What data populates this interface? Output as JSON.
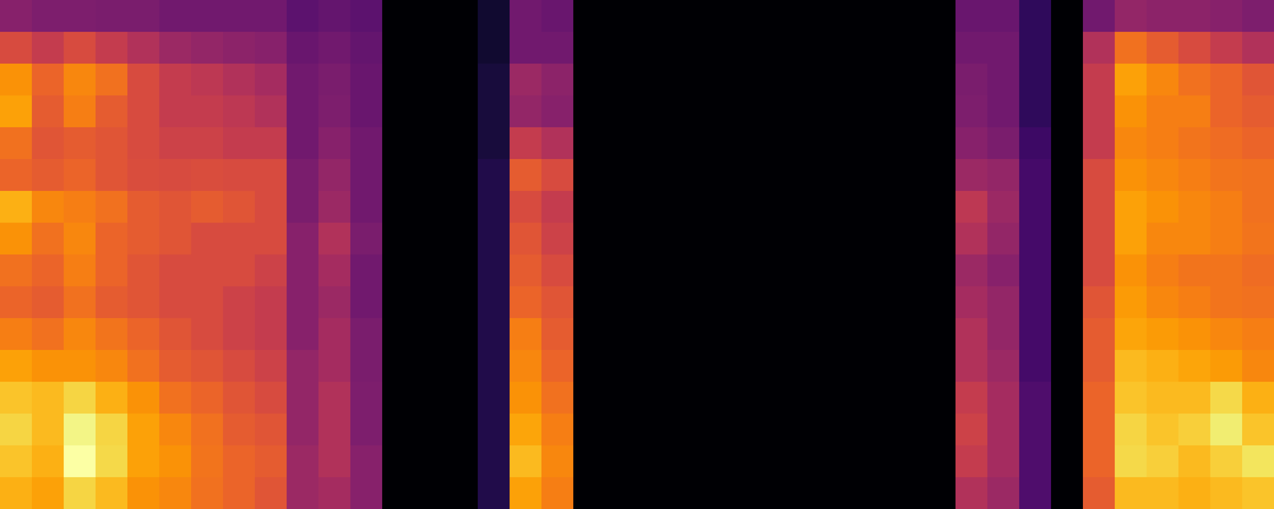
{
  "chart_data": {
    "type": "heatmap",
    "tick_labels": false,
    "cells": [
      [
        0.35,
        0.33,
        0.33,
        0.32,
        0.32,
        0.3,
        0.3,
        0.3,
        0.3,
        0.25,
        0.27,
        0.25,
        0,
        0,
        0,
        0.08,
        0.3,
        0.28,
        0,
        0,
        0,
        0,
        0,
        0,
        0,
        0,
        0,
        0,
        0,
        0,
        0.28,
        0.28,
        0.15,
        0,
        0.3,
        0.38,
        0.36,
        0.36,
        0.35,
        0.33
      ],
      [
        0.55,
        0.5,
        0.55,
        0.5,
        0.45,
        0.4,
        0.38,
        0.36,
        0.35,
        0.28,
        0.3,
        0.27,
        0,
        0,
        0,
        0.08,
        0.3,
        0.3,
        0,
        0,
        0,
        0,
        0,
        0,
        0,
        0,
        0,
        0,
        0,
        0,
        0.3,
        0.3,
        0.15,
        0,
        0.45,
        0.65,
        0.6,
        0.55,
        0.5,
        0.45
      ],
      [
        0.72,
        0.62,
        0.7,
        0.65,
        0.55,
        0.5,
        0.48,
        0.45,
        0.42,
        0.3,
        0.32,
        0.28,
        0,
        0,
        0,
        0.1,
        0.4,
        0.36,
        0,
        0,
        0,
        0,
        0,
        0,
        0,
        0,
        0,
        0,
        0,
        0,
        0.32,
        0.3,
        0.15,
        0,
        0.5,
        0.75,
        0.7,
        0.65,
        0.62,
        0.58
      ],
      [
        0.75,
        0.6,
        0.68,
        0.6,
        0.55,
        0.5,
        0.5,
        0.48,
        0.45,
        0.3,
        0.33,
        0.28,
        0,
        0,
        0,
        0.1,
        0.38,
        0.35,
        0,
        0,
        0,
        0,
        0,
        0,
        0,
        0,
        0,
        0,
        0,
        0,
        0.33,
        0.3,
        0.15,
        0,
        0.5,
        0.72,
        0.68,
        0.68,
        0.62,
        0.6
      ],
      [
        0.65,
        0.58,
        0.6,
        0.58,
        0.55,
        0.52,
        0.52,
        0.5,
        0.5,
        0.3,
        0.35,
        0.3,
        0,
        0,
        0,
        0.1,
        0.5,
        0.45,
        0,
        0,
        0,
        0,
        0,
        0,
        0,
        0,
        0,
        0,
        0,
        0,
        0.35,
        0.32,
        0.18,
        0,
        0.5,
        0.7,
        0.68,
        0.66,
        0.64,
        0.62
      ],
      [
        0.62,
        0.6,
        0.62,
        0.58,
        0.56,
        0.55,
        0.56,
        0.55,
        0.55,
        0.32,
        0.38,
        0.3,
        0,
        0,
        0,
        0.12,
        0.6,
        0.55,
        0,
        0,
        0,
        0,
        0,
        0,
        0,
        0,
        0,
        0,
        0,
        0,
        0.4,
        0.38,
        0.2,
        0,
        0.55,
        0.72,
        0.7,
        0.68,
        0.66,
        0.65
      ],
      [
        0.78,
        0.7,
        0.68,
        0.65,
        0.6,
        0.58,
        0.6,
        0.58,
        0.55,
        0.32,
        0.4,
        0.3,
        0,
        0,
        0,
        0.12,
        0.55,
        0.5,
        0,
        0,
        0,
        0,
        0,
        0,
        0,
        0,
        0,
        0,
        0,
        0,
        0.48,
        0.4,
        0.2,
        0,
        0.55,
        0.75,
        0.72,
        0.7,
        0.68,
        0.65
      ],
      [
        0.72,
        0.65,
        0.7,
        0.62,
        0.6,
        0.58,
        0.55,
        0.55,
        0.55,
        0.35,
        0.45,
        0.32,
        0,
        0,
        0,
        0.12,
        0.58,
        0.52,
        0,
        0,
        0,
        0,
        0,
        0,
        0,
        0,
        0,
        0,
        0,
        0,
        0.45,
        0.38,
        0.2,
        0,
        0.55,
        0.75,
        0.7,
        0.7,
        0.68,
        0.66
      ],
      [
        0.65,
        0.62,
        0.68,
        0.62,
        0.58,
        0.55,
        0.55,
        0.55,
        0.52,
        0.35,
        0.42,
        0.3,
        0,
        0,
        0,
        0.12,
        0.6,
        0.55,
        0,
        0,
        0,
        0,
        0,
        0,
        0,
        0,
        0,
        0,
        0,
        0,
        0.4,
        0.35,
        0.2,
        0,
        0.55,
        0.72,
        0.68,
        0.66,
        0.66,
        0.64
      ],
      [
        0.62,
        0.6,
        0.65,
        0.6,
        0.58,
        0.55,
        0.55,
        0.52,
        0.5,
        0.35,
        0.4,
        0.3,
        0,
        0,
        0,
        0.12,
        0.62,
        0.58,
        0,
        0,
        0,
        0,
        0,
        0,
        0,
        0,
        0,
        0,
        0,
        0,
        0.42,
        0.38,
        0.2,
        0,
        0.58,
        0.74,
        0.7,
        0.68,
        0.66,
        0.65
      ],
      [
        0.68,
        0.65,
        0.7,
        0.66,
        0.62,
        0.58,
        0.55,
        0.52,
        0.5,
        0.35,
        0.42,
        0.32,
        0,
        0,
        0,
        0.12,
        0.68,
        0.6,
        0,
        0,
        0,
        0,
        0,
        0,
        0,
        0,
        0,
        0,
        0,
        0,
        0.45,
        0.38,
        0.2,
        0,
        0.6,
        0.76,
        0.74,
        0.72,
        0.7,
        0.68
      ],
      [
        0.75,
        0.72,
        0.72,
        0.7,
        0.65,
        0.6,
        0.58,
        0.55,
        0.52,
        0.38,
        0.42,
        0.32,
        0,
        0,
        0,
        0.12,
        0.7,
        0.62,
        0,
        0,
        0,
        0,
        0,
        0,
        0,
        0,
        0,
        0,
        0,
        0,
        0.45,
        0.4,
        0.2,
        0,
        0.6,
        0.8,
        0.78,
        0.76,
        0.74,
        0.7
      ],
      [
        0.82,
        0.8,
        0.85,
        0.78,
        0.72,
        0.65,
        0.62,
        0.58,
        0.55,
        0.38,
        0.45,
        0.33,
        0,
        0,
        0,
        0.12,
        0.72,
        0.65,
        0,
        0,
        0,
        0,
        0,
        0,
        0,
        0,
        0,
        0,
        0,
        0,
        0.5,
        0.42,
        0.22,
        0,
        0.62,
        0.82,
        0.8,
        0.8,
        0.86,
        0.78
      ],
      [
        0.85,
        0.8,
        0.92,
        0.85,
        0.75,
        0.7,
        0.65,
        0.6,
        0.58,
        0.38,
        0.45,
        0.33,
        0,
        0,
        0,
        0.12,
        0.76,
        0.68,
        0,
        0,
        0,
        0,
        0,
        0,
        0,
        0,
        0,
        0,
        0,
        0,
        0.52,
        0.42,
        0.22,
        0,
        0.62,
        0.85,
        0.82,
        0.84,
        0.9,
        0.82
      ],
      [
        0.82,
        0.78,
        0.95,
        0.86,
        0.75,
        0.72,
        0.66,
        0.62,
        0.6,
        0.4,
        0.45,
        0.35,
        0,
        0,
        0,
        0.12,
        0.8,
        0.7,
        0,
        0,
        0,
        0,
        0,
        0,
        0,
        0,
        0,
        0,
        0,
        0,
        0.5,
        0.42,
        0.22,
        0,
        0.62,
        0.86,
        0.84,
        0.8,
        0.84,
        0.88
      ],
      [
        0.78,
        0.75,
        0.85,
        0.8,
        0.72,
        0.7,
        0.65,
        0.62,
        0.58,
        0.4,
        0.42,
        0.35,
        0,
        0,
        0,
        0.12,
        0.75,
        0.68,
        0,
        0,
        0,
        0,
        0,
        0,
        0,
        0,
        0,
        0,
        0,
        0,
        0.45,
        0.4,
        0.22,
        0,
        0.6,
        0.8,
        0.8,
        0.78,
        0.8,
        0.82
      ]
    ]
  }
}
